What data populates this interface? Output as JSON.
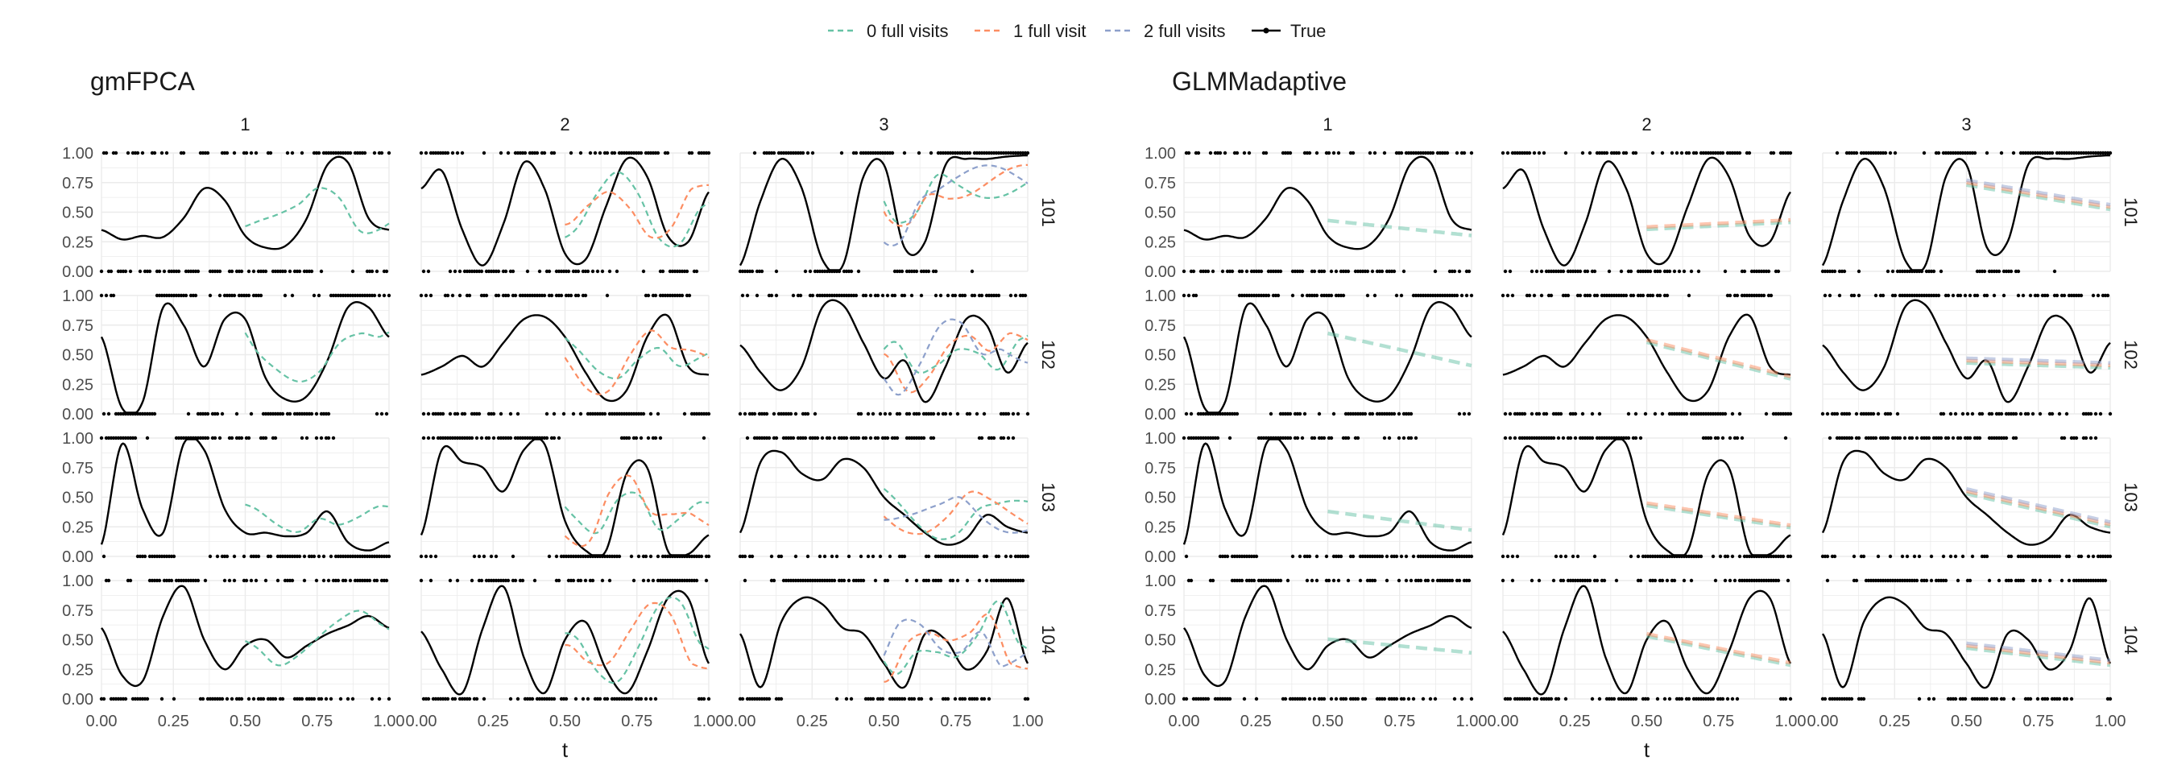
{
  "legend": {
    "entries": [
      {
        "label": "0 full visits",
        "color": "#66c2a5",
        "style": "dashed"
      },
      {
        "label": "1 full visit",
        "color": "#fc8d62",
        "style": "dashed"
      },
      {
        "label": "2 full visits",
        "color": "#8da0cb",
        "style": "dashed"
      },
      {
        "label": "True",
        "color": "#000000",
        "style": "solid-with-points"
      }
    ]
  },
  "chart_data": [
    {
      "type": "line",
      "title": "gmFPCA",
      "xlabel": "t",
      "ylabel": "",
      "xlim": [
        0,
        1
      ],
      "ylim": [
        0,
        1
      ],
      "x_ticks": [
        "0.00",
        "0.25",
        "0.50",
        "0.75",
        "1.00"
      ],
      "y_ticks": [
        "0.00",
        "0.25",
        "0.50",
        "0.75",
        "1.00"
      ],
      "columns": [
        "1",
        "2",
        "3"
      ],
      "rows": [
        "101",
        "102",
        "103",
        "104"
      ],
      "grid": true,
      "panels": [
        {
          "col": "1",
          "row": "101",
          "predictions": [
            "0 full visits"
          ]
        },
        {
          "col": "2",
          "row": "101",
          "predictions": [
            "0 full visits",
            "1 full visit"
          ]
        },
        {
          "col": "3",
          "row": "101",
          "predictions": [
            "0 full visits",
            "1 full visit",
            "2 full visits"
          ]
        },
        {
          "col": "1",
          "row": "102",
          "predictions": [
            "0 full visits"
          ]
        },
        {
          "col": "2",
          "row": "102",
          "predictions": [
            "0 full visits",
            "1 full visit"
          ]
        },
        {
          "col": "3",
          "row": "102",
          "predictions": [
            "0 full visits",
            "1 full visit",
            "2 full visits"
          ]
        },
        {
          "col": "1",
          "row": "103",
          "predictions": [
            "0 full visits"
          ]
        },
        {
          "col": "2",
          "row": "103",
          "predictions": [
            "0 full visits",
            "1 full visit"
          ]
        },
        {
          "col": "3",
          "row": "103",
          "predictions": [
            "0 full visits",
            "1 full visit",
            "2 full visits"
          ]
        },
        {
          "col": "1",
          "row": "104",
          "predictions": [
            "0 full visits"
          ]
        },
        {
          "col": "2",
          "row": "104",
          "predictions": [
            "0 full visits",
            "1 full visit"
          ]
        },
        {
          "col": "3",
          "row": "104",
          "predictions": [
            "0 full visits",
            "1 full visit",
            "2 full visits"
          ]
        }
      ]
    },
    {
      "type": "line",
      "title": "GLMMadaptive",
      "xlabel": "t",
      "ylabel": "",
      "xlim": [
        0,
        1
      ],
      "ylim": [
        0,
        1
      ],
      "x_ticks": [
        "0.00",
        "0.25",
        "0.50",
        "0.75",
        "1.00"
      ],
      "y_ticks": [
        "0.00",
        "0.25",
        "0.50",
        "0.75",
        "1.00"
      ],
      "columns": [
        "1",
        "2",
        "3"
      ],
      "rows": [
        "101",
        "102",
        "103",
        "104"
      ],
      "grid": true,
      "panels": [
        {
          "col": "1",
          "row": "101",
          "predictions": [
            "0 full visits"
          ]
        },
        {
          "col": "2",
          "row": "101",
          "predictions": [
            "0 full visits",
            "1 full visit"
          ]
        },
        {
          "col": "3",
          "row": "101",
          "predictions": [
            "0 full visits",
            "1 full visit",
            "2 full visits"
          ]
        },
        {
          "col": "1",
          "row": "102",
          "predictions": [
            "0 full visits"
          ]
        },
        {
          "col": "2",
          "row": "102",
          "predictions": [
            "0 full visits",
            "1 full visit"
          ]
        },
        {
          "col": "3",
          "row": "102",
          "predictions": [
            "0 full visits",
            "1 full visit",
            "2 full visits"
          ]
        },
        {
          "col": "1",
          "row": "103",
          "predictions": [
            "0 full visits"
          ]
        },
        {
          "col": "2",
          "row": "103",
          "predictions": [
            "0 full visits",
            "1 full visit"
          ]
        },
        {
          "col": "3",
          "row": "103",
          "predictions": [
            "0 full visits",
            "1 full visit",
            "2 full visits"
          ]
        },
        {
          "col": "1",
          "row": "104",
          "predictions": [
            "0 full visits"
          ]
        },
        {
          "col": "2",
          "row": "104",
          "predictions": [
            "0 full visits",
            "1 full visit"
          ]
        },
        {
          "col": "3",
          "row": "104",
          "predictions": [
            "0 full visits",
            "1 full visit",
            "2 full visits"
          ]
        }
      ]
    }
  ]
}
